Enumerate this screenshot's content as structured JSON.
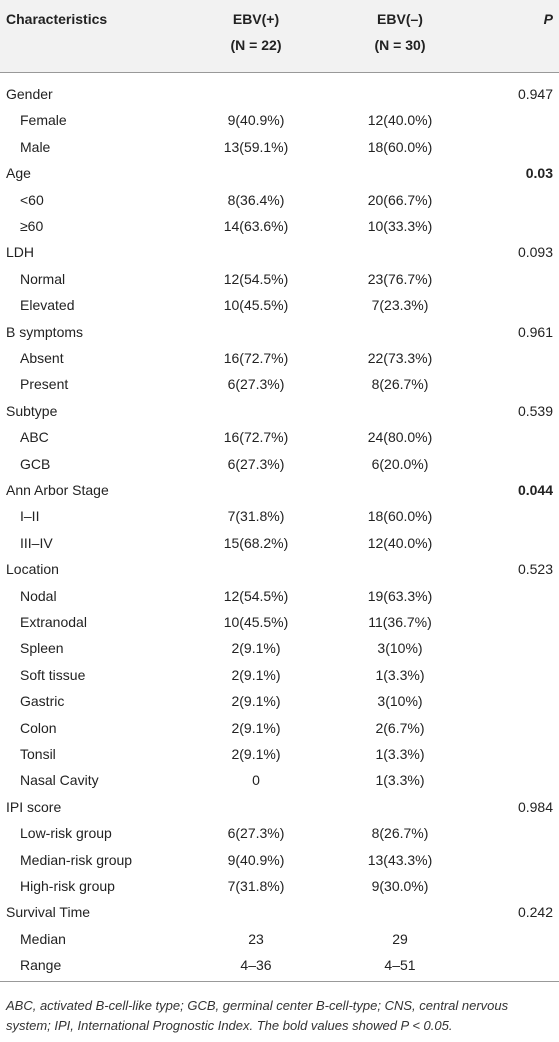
{
  "table": {
    "header": [
      "Characteristics",
      "EBV(+)",
      "EBV(–)",
      "P"
    ],
    "subheader": [
      null,
      "(N = 22)",
      "(N = 30)",
      null
    ],
    "groups": [
      {
        "label": "Gender",
        "p": "0.947",
        "items": [
          {
            "label": "Female",
            "ebv_pos": "9(40.9%)",
            "ebv_neg": "12(40.0%)"
          },
          {
            "label": "Male",
            "ebv_pos": "13(59.1%)",
            "ebv_neg": "18(60.0%)"
          }
        ]
      },
      {
        "label": "Age",
        "p": "0.03",
        "bold": true,
        "items": [
          {
            "label": "<60",
            "ebv_pos": "8(36.4%)",
            "ebv_neg": "20(66.7%)"
          },
          {
            "label": "≥60",
            "ebv_pos": "14(63.6%)",
            "ebv_neg": "10(33.3%)"
          }
        ]
      },
      {
        "label": "LDH",
        "p": "0.093",
        "items": [
          {
            "label": "Normal",
            "ebv_pos": "12(54.5%)",
            "ebv_neg": "23(76.7%)"
          },
          {
            "label": "Elevated",
            "ebv_pos": "10(45.5%)",
            "ebv_neg": "7(23.3%)"
          }
        ]
      },
      {
        "label": "B symptoms",
        "p": "0.961",
        "items": [
          {
            "label": "Absent",
            "ebv_pos": "16(72.7%)",
            "ebv_neg": "22(73.3%)"
          },
          {
            "label": "Present",
            "ebv_pos": "6(27.3%)",
            "ebv_neg": "8(26.7%)"
          }
        ]
      },
      {
        "label": "Subtype",
        "p": "0.539",
        "items": [
          {
            "label": "ABC",
            "ebv_pos": "16(72.7%)",
            "ebv_neg": "24(80.0%)"
          },
          {
            "label": "GCB",
            "ebv_pos": "6(27.3%)",
            "ebv_neg": "6(20.0%)"
          }
        ]
      },
      {
        "label": "Ann Arbor Stage",
        "p": "0.044",
        "bold": true,
        "items": [
          {
            "label": "I–II",
            "ebv_pos": "7(31.8%)",
            "ebv_neg": "18(60.0%)"
          },
          {
            "label": "III–IV",
            "ebv_pos": "15(68.2%)",
            "ebv_neg": "12(40.0%)"
          }
        ]
      },
      {
        "label": "Location",
        "p": "0.523",
        "items": [
          {
            "label": "Nodal",
            "ebv_pos": "12(54.5%)",
            "ebv_neg": "19(63.3%)"
          },
          {
            "label": "Extranodal",
            "ebv_pos": "10(45.5%)",
            "ebv_neg": "11(36.7%)"
          },
          {
            "label": "Spleen",
            "ebv_pos": "2(9.1%)",
            "ebv_neg": "3(10%)"
          },
          {
            "label": "Soft tissue",
            "ebv_pos": "2(9.1%)",
            "ebv_neg": "1(3.3%)"
          },
          {
            "label": "Gastric",
            "ebv_pos": "2(9.1%)",
            "ebv_neg": "3(10%)"
          },
          {
            "label": "Colon",
            "ebv_pos": "2(9.1%)",
            "ebv_neg": "2(6.7%)"
          },
          {
            "label": "Tonsil",
            "ebv_pos": "2(9.1%)",
            "ebv_neg": "1(3.3%)"
          },
          {
            "label": "Nasal Cavity",
            "ebv_pos": "0",
            "ebv_neg": "1(3.3%)"
          }
        ]
      },
      {
        "label": "IPI score",
        "p": "0.984",
        "items": [
          {
            "label": "Low-risk group",
            "ebv_pos": "6(27.3%)",
            "ebv_neg": "8(26.7%)"
          },
          {
            "label": "Median-risk group",
            "ebv_pos": "9(40.9%)",
            "ebv_neg": "13(43.3%)"
          },
          {
            "label": "High-risk group",
            "ebv_pos": "7(31.8%)",
            "ebv_neg": "9(30.0%)"
          }
        ]
      },
      {
        "label": "Survival Time",
        "p": "0.242",
        "items": [
          {
            "label": "Median",
            "ebv_pos": "23",
            "ebv_neg": "29"
          },
          {
            "label": "Range",
            "ebv_pos": "4–36",
            "ebv_neg": "4–51"
          }
        ]
      }
    ],
    "footnote": "ABC, activated B-cell-like type; GCB, germinal center B-cell-type; CNS, central nervous system; IPI, International Prognostic Index. The bold values showed P < 0.05."
  }
}
